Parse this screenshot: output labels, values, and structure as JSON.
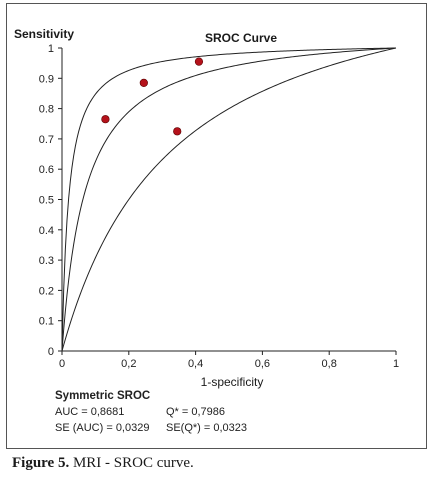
{
  "chart_data": {
    "type": "scatter",
    "title": "SROC Curve",
    "ylabel": "Sensitivity",
    "xlabel": "1-specificity",
    "xlim": [
      0,
      1
    ],
    "ylim": [
      0,
      1
    ],
    "x_ticks": [
      "0",
      "0,2",
      "0,4",
      "0,6",
      "0,8",
      "1"
    ],
    "y_ticks": [
      "0",
      "0.1",
      "0.2",
      "0.3",
      "0.4",
      "0.5",
      "0.6",
      "0.7",
      "0.8",
      "0.9",
      "1"
    ],
    "grid": false,
    "points": [
      {
        "x": 0.13,
        "y": 0.765
      },
      {
        "x": 0.245,
        "y": 0.885
      },
      {
        "x": 0.345,
        "y": 0.725
      },
      {
        "x": 0.41,
        "y": 0.955
      }
    ],
    "point_color": "#b5121b",
    "curves": [
      {
        "diagnostic_odds_ratio": 50
      },
      {
        "diagnostic_odds_ratio": 15
      },
      {
        "diagnostic_odds_ratio": 4
      }
    ]
  },
  "stats": {
    "title": "Symmetric SROC",
    "auc": "AUC = 0,8681",
    "se_auc": "SE (AUC) = 0,0329",
    "q": "Q* = 0,7986",
    "se_q": "SE(Q*) = 0,0323"
  },
  "caption": {
    "label": "Figure 5.",
    "text": " MRI - SROC curve."
  }
}
